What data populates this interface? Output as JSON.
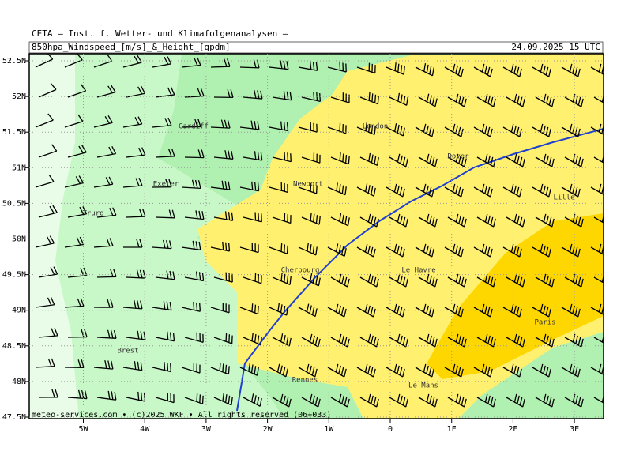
{
  "header": {
    "title": "CETA — Inst. f. Wetter- und Klimafolgenanalysen —",
    "subtitle": "850hpa_Windspeed_[m/s]_&_Height_[gpdm]",
    "valid_time": "24.09.2025 15 UTC"
  },
  "map": {
    "lon_ticks": [
      {
        "value": -5,
        "label": "5W"
      },
      {
        "value": -4,
        "label": "4W"
      },
      {
        "value": -3,
        "label": "3W"
      },
      {
        "value": -2,
        "label": "2W"
      },
      {
        "value": -1,
        "label": "1W"
      },
      0,
      {
        "value": 1,
        "label": "1E"
      },
      {
        "value": 2,
        "label": "2E"
      },
      {
        "value": 3,
        "label": "3E"
      }
    ],
    "lat_ticks": [
      {
        "value": 52.5,
        "label": "52.5N"
      },
      {
        "value": 52,
        "label": "52N"
      },
      {
        "value": 51.5,
        "label": "51.5N"
      },
      {
        "value": 51,
        "label": "51N"
      },
      {
        "value": 50.5,
        "label": "50.5N"
      },
      {
        "value": 50,
        "label": "50N"
      },
      {
        "value": 49.5,
        "label": "49.5N"
      },
      {
        "value": 49,
        "label": "49N"
      },
      {
        "value": 48.5,
        "label": "48.5N"
      },
      {
        "value": 48,
        "label": "48N"
      },
      {
        "value": 47.5,
        "label": "47.5N"
      }
    ],
    "cities": [
      "Cardiff",
      "Exeter",
      "Truro",
      "Newport",
      "London",
      "Dover",
      "Lille",
      "Cherbourg",
      "Le Havre",
      "Paris",
      "Brest",
      "Rennes",
      "Le Mans"
    ]
  },
  "footer": "meteo-services.com • (c)2025 WKF • All rights reserved (06+033)"
}
